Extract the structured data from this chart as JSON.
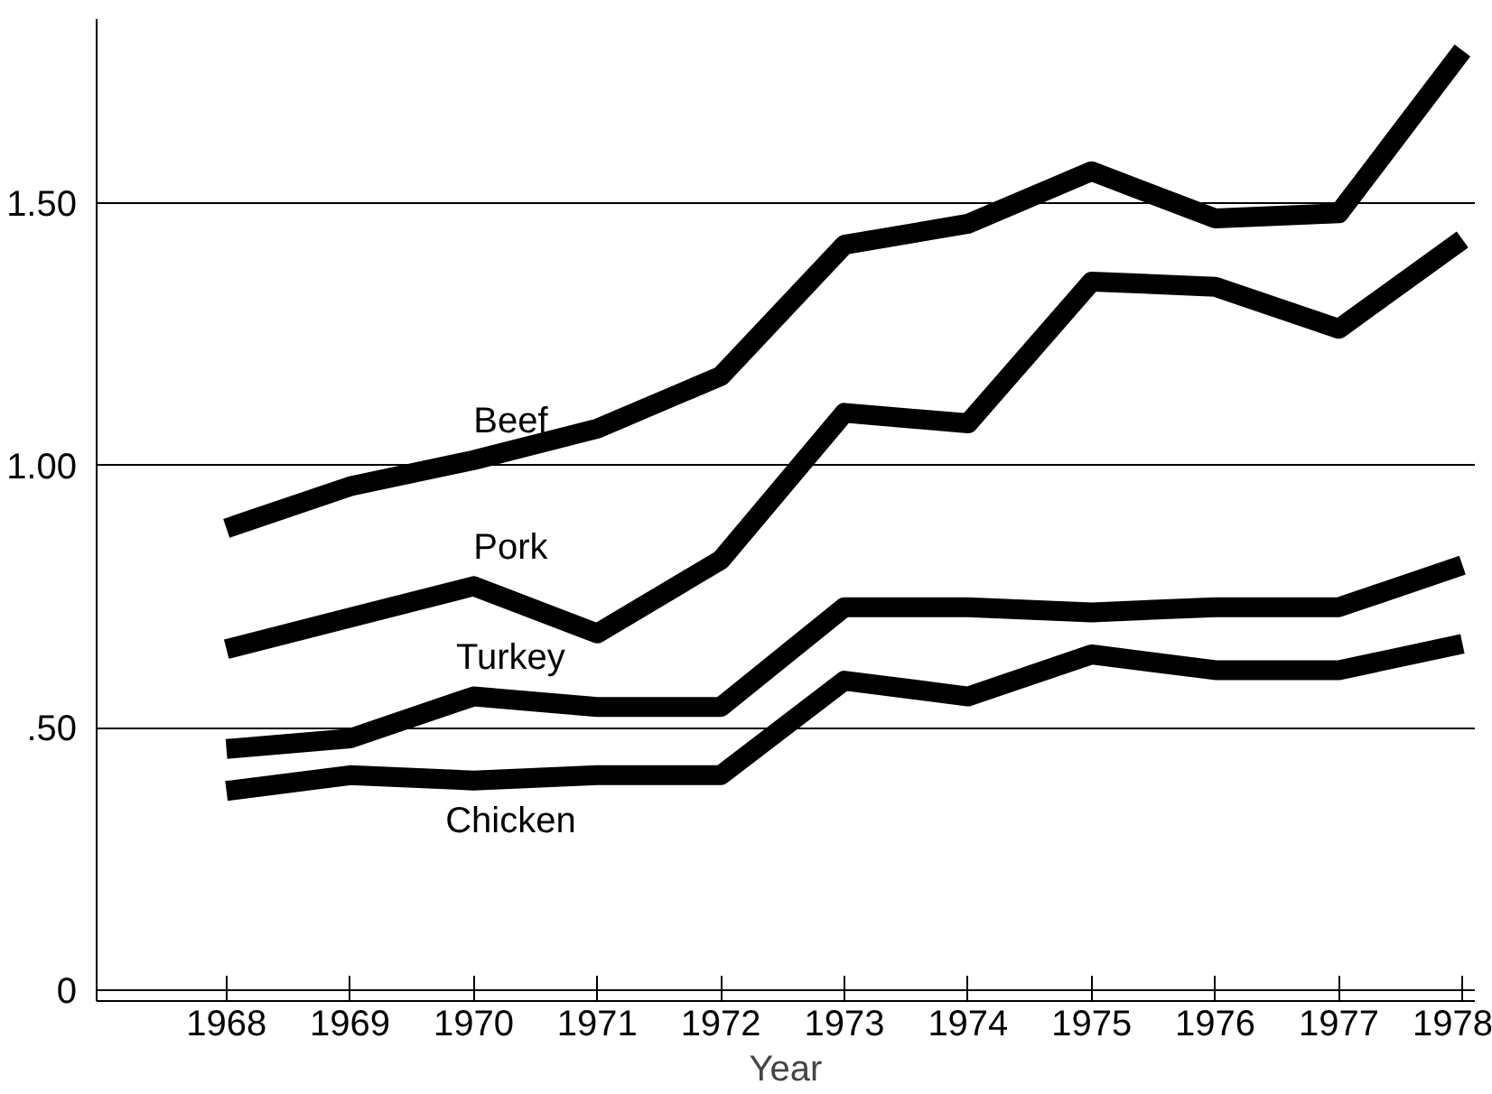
{
  "chart_data": {
    "type": "line",
    "xlabel": "Year",
    "x": [
      1968,
      1969,
      1970,
      1971,
      1972,
      1973,
      1974,
      1975,
      1976,
      1977,
      1978
    ],
    "series": [
      {
        "name": "Beef",
        "color": "#000000",
        "values": [
          0.88,
          0.96,
          1.01,
          1.07,
          1.17,
          1.42,
          1.46,
          1.56,
          1.47,
          1.48,
          1.79
        ]
      },
      {
        "name": "Pork",
        "color": "#000000",
        "values": [
          0.65,
          0.71,
          0.77,
          0.68,
          0.82,
          1.1,
          1.08,
          1.35,
          1.34,
          1.26,
          1.43
        ]
      },
      {
        "name": "Turkey",
        "color": "#000000",
        "values": [
          0.46,
          0.48,
          0.56,
          0.54,
          0.54,
          0.73,
          0.73,
          0.72,
          0.73,
          0.73,
          0.81
        ]
      },
      {
        "name": "Chicken",
        "color": "#000000",
        "values": [
          0.38,
          0.41,
          0.4,
          0.41,
          0.41,
          0.59,
          0.56,
          0.64,
          0.61,
          0.61,
          0.66
        ]
      }
    ],
    "xlim": [
      1966.95,
      1978.1
    ],
    "ylim": [
      -0.02,
      1.85
    ],
    "xticks": [
      1968,
      1969,
      1970,
      1971,
      1972,
      1973,
      1974,
      1975,
      1976,
      1977,
      1978
    ],
    "yticks": [
      0,
      {
        "value": 0.5,
        "label": ".50"
      },
      {
        "value": 1.0,
        "label": "1.00"
      },
      {
        "value": 1.5,
        "label": "1.50"
      }
    ],
    "grid": "y",
    "marker": "none",
    "line_style": "solid"
  }
}
